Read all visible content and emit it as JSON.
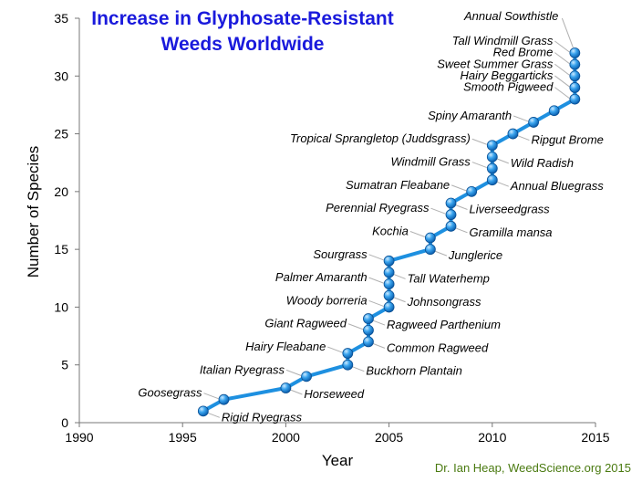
{
  "chart_data": {
    "type": "line",
    "title_lines": [
      "Increase in Glyphosate-Resistant",
      "Weeds Worldwide"
    ],
    "xlabel": "Year",
    "ylabel": "Number of Species",
    "xlim": [
      1990,
      2015
    ],
    "ylim": [
      0,
      35
    ],
    "xticks": [
      "1990",
      "1995",
      "2000",
      "2005",
      "2010",
      "2015"
    ],
    "yticks": [
      "0",
      "5",
      "10",
      "15",
      "20",
      "25",
      "30",
      "35"
    ],
    "grid": false,
    "line_color": "#1e90e0",
    "points": [
      {
        "x": 1996,
        "y": 1,
        "label": "Rigid Ryegrass",
        "side": "right"
      },
      {
        "x": 1997,
        "y": 2,
        "label": "Goosegrass",
        "side": "left"
      },
      {
        "x": 2000,
        "y": 3,
        "label": "Horseweed",
        "side": "right"
      },
      {
        "x": 2001,
        "y": 4,
        "label": "Italian Ryegrass",
        "side": "left"
      },
      {
        "x": 2003,
        "y": 5,
        "label": "Buckhorn Plantain",
        "side": "right"
      },
      {
        "x": 2003,
        "y": 6,
        "label": "Hairy Fleabane",
        "side": "left"
      },
      {
        "x": 2004,
        "y": 7,
        "label": "Common Ragweed",
        "side": "right"
      },
      {
        "x": 2004,
        "y": 8,
        "label": "Giant Ragweed",
        "side": "left"
      },
      {
        "x": 2004,
        "y": 9,
        "label": "Ragweed Parthenium",
        "side": "right"
      },
      {
        "x": 2005,
        "y": 10,
        "label": "Woody borreria",
        "side": "left"
      },
      {
        "x": 2005,
        "y": 11,
        "label": "Johnsongrass",
        "side": "right"
      },
      {
        "x": 2005,
        "y": 12,
        "label": "Palmer Amaranth",
        "side": "left"
      },
      {
        "x": 2005,
        "y": 13,
        "label": "Tall Waterhemp",
        "side": "right"
      },
      {
        "x": 2005,
        "y": 14,
        "label": "Sourgrass",
        "side": "left"
      },
      {
        "x": 2007,
        "y": 15,
        "label": "Junglerice",
        "side": "right"
      },
      {
        "x": 2007,
        "y": 16,
        "label": "Kochia",
        "side": "left"
      },
      {
        "x": 2008,
        "y": 17,
        "label": "Gramilla mansa",
        "side": "right"
      },
      {
        "x": 2008,
        "y": 18,
        "label": "Perennial Ryegrass",
        "side": "left"
      },
      {
        "x": 2008,
        "y": 19,
        "label": "Liverseedgrass",
        "side": "right"
      },
      {
        "x": 2009,
        "y": 20,
        "label": "Sumatran Fleabane",
        "side": "left"
      },
      {
        "x": 2010,
        "y": 21,
        "label": "Annual Bluegrass",
        "side": "right"
      },
      {
        "x": 2010,
        "y": 22,
        "label": "Windmill Grass",
        "side": "left"
      },
      {
        "x": 2010,
        "y": 23,
        "label": "Wild Radish",
        "side": "right"
      },
      {
        "x": 2010,
        "y": 24,
        "label": "Tropical Sprangletop (Juddsgrass)",
        "side": "left"
      },
      {
        "x": 2011,
        "y": 25,
        "label": "Ripgut Brome",
        "side": "right"
      },
      {
        "x": 2012,
        "y": 26,
        "label": "Spiny Amaranth",
        "side": "left"
      },
      {
        "x": 2013,
        "y": 27,
        "label": "",
        "side": "none"
      },
      {
        "x": 2014,
        "y": 28,
        "label": "Smooth Pigweed",
        "side": "left"
      },
      {
        "x": 2014,
        "y": 29,
        "label": "Hairy Beggarticks",
        "side": "left"
      },
      {
        "x": 2014,
        "y": 30,
        "label": "Sweet Summer Grass",
        "side": "left"
      },
      {
        "x": 2014,
        "y": 31,
        "label": "Red Brome",
        "side": "left"
      },
      {
        "x": 2014,
        "y": 32,
        "label": "Tall Windmill Grass",
        "side": "left"
      }
    ],
    "extra_annotations": [
      {
        "label": "Annual Sowthistle",
        "anchor_x": 2014,
        "anchor_y": 32
      }
    ]
  },
  "credit": "Dr. Ian Heap, WeedScience.org  2015"
}
